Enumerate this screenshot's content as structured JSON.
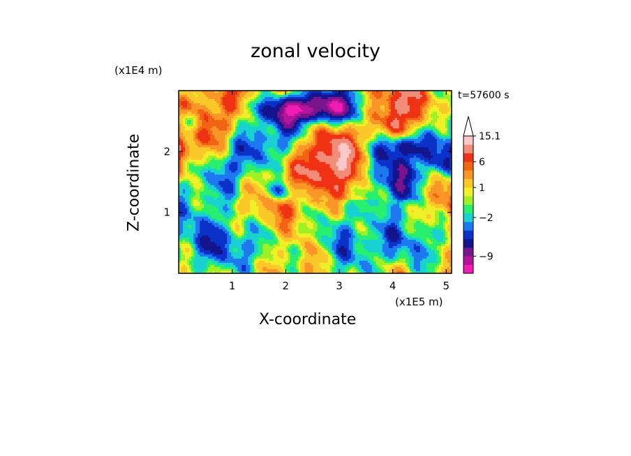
{
  "chart_data": {
    "type": "heatmap",
    "title": "zonal velocity",
    "xlabel": "X-coordinate",
    "ylabel": "Z-coordinate",
    "x_unit": "(x1E5 m)",
    "y_unit": "(x1E4 m)",
    "annotation": "t=57600 s",
    "xlim": [
      0,
      5.1
    ],
    "ylim": [
      0,
      3.0
    ],
    "x_ticks": [
      "1",
      "2",
      "3",
      "4",
      "5"
    ],
    "y_ticks": [
      "1",
      "2"
    ],
    "x_tick_values": [
      1,
      2,
      3,
      4,
      5
    ],
    "y_tick_values": [
      1,
      2
    ],
    "colorbar": {
      "labels": [
        {
          "text": "15.1",
          "value": 15.1
        },
        {
          "text": "6",
          "value": 6
        },
        {
          "text": "1",
          "value": 1
        },
        {
          "text": "−2",
          "value": -2
        },
        {
          "text": "−9",
          "value": -9
        }
      ],
      "colors": [
        "#f01cb4",
        "#b4149c",
        "#78148c",
        "#14148c",
        "#0a32c8",
        "#1e78f0",
        "#18d2d2",
        "#28f06e",
        "#a0f028",
        "#f0f028",
        "#fac828",
        "#fa9628",
        "#f06414",
        "#f03214",
        "#f08c78",
        "#fac8c8"
      ]
    },
    "field_description": "2D contour field of zonal velocity, values approx. -12 to 15, strong negative band (blue/purple) near top centre, positive (orange/red) diagonal streaks."
  }
}
